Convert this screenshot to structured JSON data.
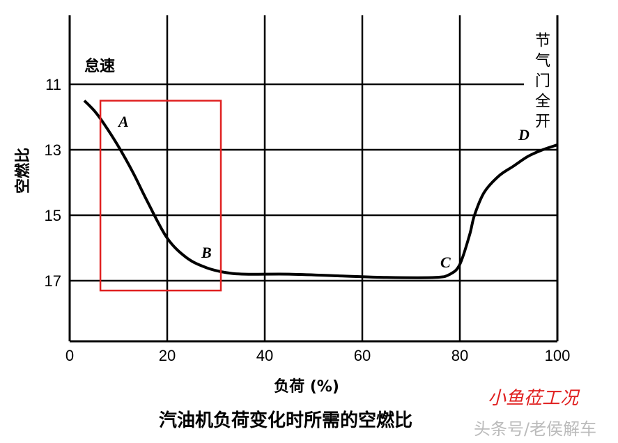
{
  "chart_data": {
    "type": "line",
    "title": "汽油机负荷变化时所需的空燃比",
    "xlabel": "负荷 (%)",
    "ylabel": "空燃比",
    "xlim": [
      0,
      100
    ],
    "ylim": [
      19,
      9
    ],
    "y_inverted": true,
    "grid": true,
    "xticks": [
      0,
      20,
      40,
      60,
      80,
      100
    ],
    "yticks": [
      11,
      13,
      15,
      17
    ],
    "series": [
      {
        "color": "#000000",
        "x": [
          3,
          5,
          7,
          10,
          13,
          16,
          20,
          24,
          28,
          32,
          36,
          45,
          55,
          65,
          75,
          78,
          80,
          82,
          83,
          85,
          88,
          91,
          94,
          97,
          100
        ],
        "y": [
          11.5,
          11.8,
          12.2,
          12.9,
          13.7,
          14.6,
          15.7,
          16.3,
          16.6,
          16.75,
          16.8,
          16.8,
          16.85,
          16.9,
          16.9,
          16.8,
          16.5,
          15.6,
          15.0,
          14.3,
          13.8,
          13.5,
          13.2,
          13.0,
          12.85
        ]
      }
    ],
    "annotations": [
      {
        "text": "怠速",
        "x": 3,
        "y": 10.6
      },
      {
        "text": "节气门全开",
        "x": 96,
        "y": 10.5,
        "orientation": "vertical"
      },
      {
        "text": "A",
        "x": 10,
        "y": 12.3
      },
      {
        "text": "B",
        "x": 27,
        "y": 16.3
      },
      {
        "text": "C",
        "x": 76,
        "y": 16.6
      },
      {
        "text": "D",
        "x": 92,
        "y": 12.7
      }
    ],
    "highlight_box": {
      "x": [
        6.3,
        31
      ],
      "y": [
        11.5,
        17.3
      ],
      "color": "#e02020"
    }
  },
  "watermark": {
    "red": "小鱼莅工况",
    "gray": "头条号/老侯解车"
  }
}
